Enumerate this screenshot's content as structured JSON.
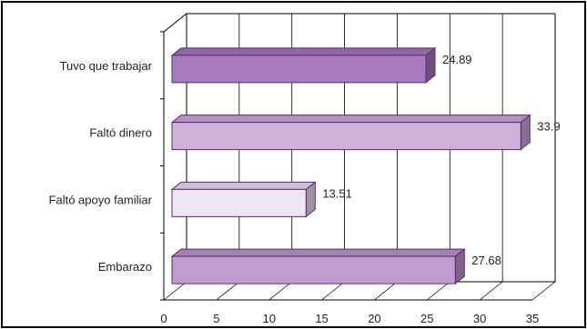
{
  "chart_data": {
    "type": "bar",
    "orientation": "horizontal",
    "style": "3d",
    "title": "",
    "xlabel": "",
    "ylabel": "",
    "categories": [
      "Tuvo que trabajar",
      "Faltó dinero",
      "Faltó apoyo familiar",
      "Embarazo"
    ],
    "values": [
      24.89,
      33.9,
      13.51,
      27.68
    ],
    "value_labels": [
      "24.89",
      "33.9",
      "13.51",
      "27.68"
    ],
    "xlim": [
      0,
      35
    ],
    "xticks": [
      "0",
      "5",
      "10",
      "15",
      "20",
      "25",
      "30",
      "35"
    ],
    "grid": true,
    "legend": "none",
    "colors": {
      "Tuvo que trabajar": "#a77bbb",
      "Faltó dinero": "#cdb1d9",
      "Faltó apoyo familiar": "#eee4f2",
      "Embarazo": "#c09bd0",
      "outline": "#5a2a6e",
      "frame": "#000000"
    }
  }
}
